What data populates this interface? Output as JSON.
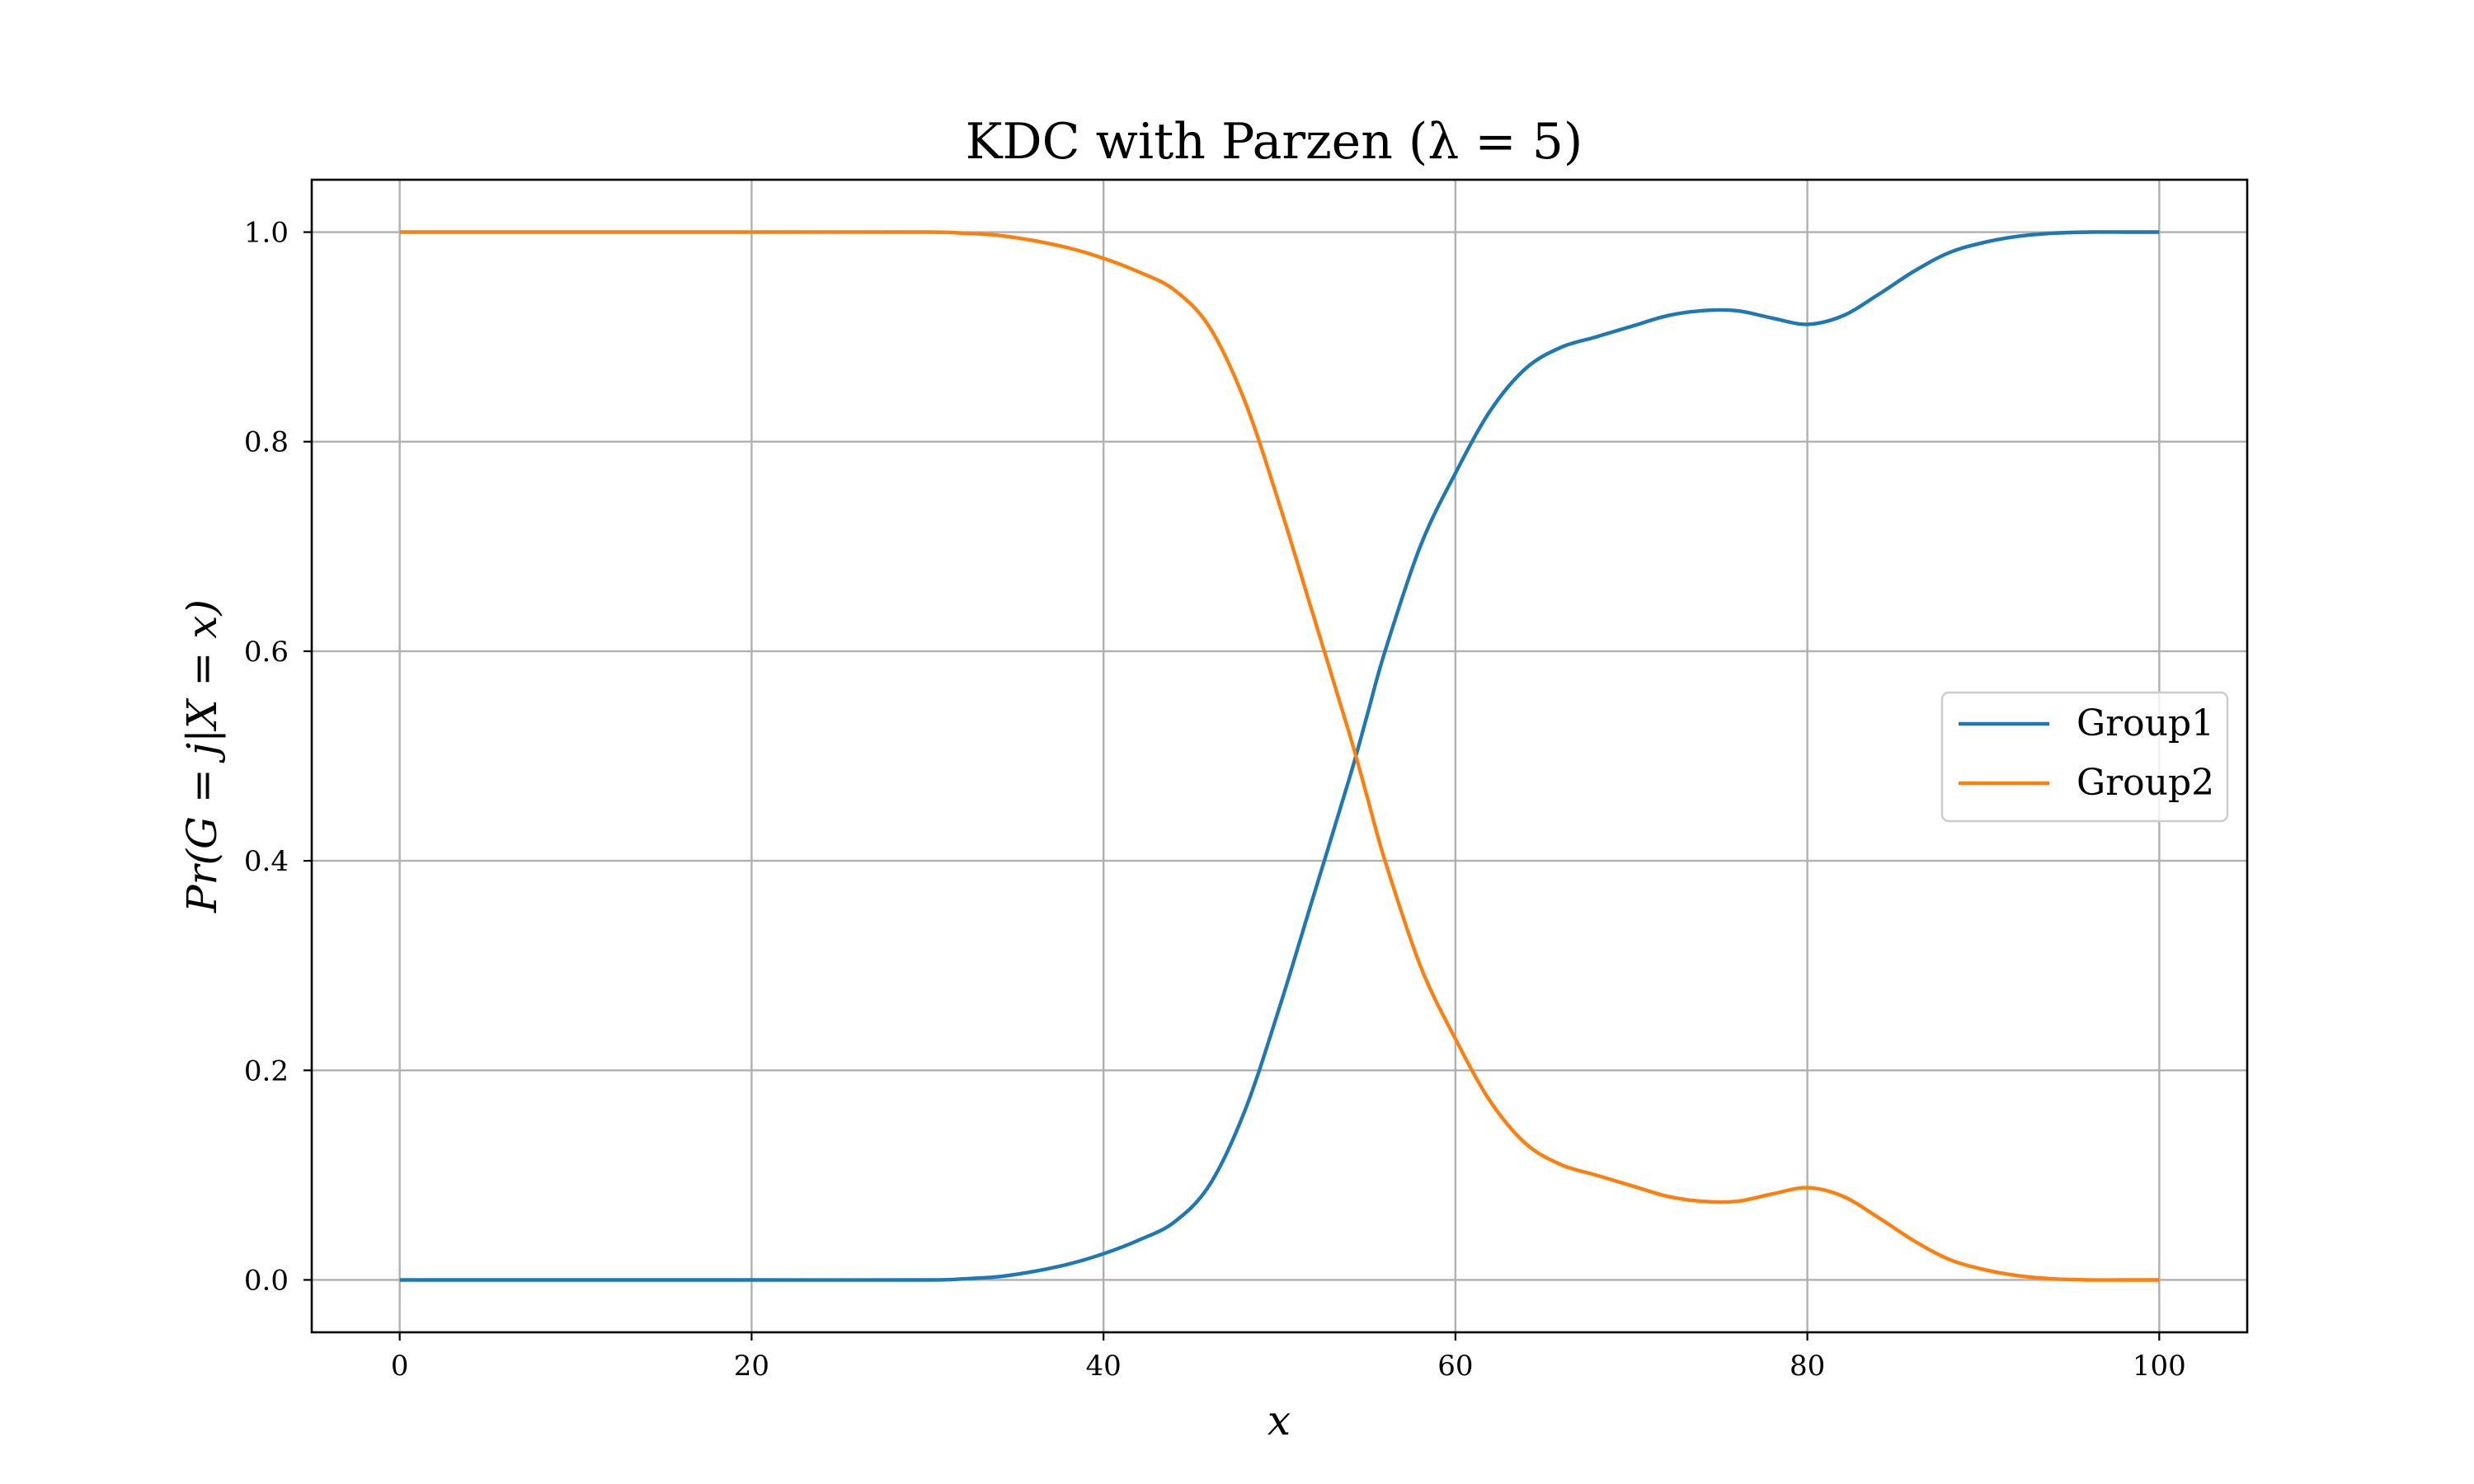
{
  "colors": {
    "group1": "#1f77b4",
    "group2": "#ff7f0e",
    "grid": "#b0b0b0"
  },
  "chart_data": {
    "type": "line",
    "title": "KDC with Parzen (λ = 5)",
    "xlabel": "x",
    "ylabel": "Pr(G = j|X = x)",
    "xlim": [
      -5,
      105
    ],
    "ylim": [
      -0.05,
      1.05
    ],
    "xticks": [
      "0",
      "20",
      "40",
      "60",
      "80",
      "100"
    ],
    "yticks": [
      "0.0",
      "0.2",
      "0.4",
      "0.6",
      "0.8",
      "1.0"
    ],
    "grid": true,
    "legend_position": "center-right",
    "x": [
      0,
      10,
      20,
      30,
      32,
      34,
      36,
      38,
      40,
      42,
      44,
      46,
      48,
      50,
      52,
      54,
      55,
      56,
      58,
      60,
      62,
      64,
      66,
      68,
      70,
      72,
      74,
      76,
      78,
      80,
      82,
      84,
      86,
      88,
      90,
      92,
      94,
      96,
      98,
      100
    ],
    "series": [
      {
        "name": "Group1",
        "color": "#1f77b4",
        "values": [
          0.0,
          0.0,
          0.0,
          0.0,
          0.001,
          0.003,
          0.008,
          0.015,
          0.025,
          0.038,
          0.055,
          0.09,
          0.16,
          0.26,
          0.37,
          0.48,
          0.54,
          0.6,
          0.7,
          0.77,
          0.83,
          0.87,
          0.89,
          0.9,
          0.91,
          0.92,
          0.925,
          0.925,
          0.918,
          0.912,
          0.92,
          0.94,
          0.962,
          0.98,
          0.99,
          0.996,
          0.999,
          1.0,
          1.0,
          1.0
        ]
      },
      {
        "name": "Group2",
        "color": "#ff7f0e",
        "values": [
          1.0,
          1.0,
          1.0,
          1.0,
          0.999,
          0.997,
          0.992,
          0.985,
          0.975,
          0.962,
          0.945,
          0.91,
          0.84,
          0.74,
          0.63,
          0.52,
          0.46,
          0.4,
          0.3,
          0.23,
          0.17,
          0.13,
          0.11,
          0.1,
          0.09,
          0.08,
          0.075,
          0.075,
          0.082,
          0.088,
          0.08,
          0.06,
          0.038,
          0.02,
          0.01,
          0.004,
          0.001,
          0.0,
          0.0,
          0.0
        ]
      }
    ]
  }
}
